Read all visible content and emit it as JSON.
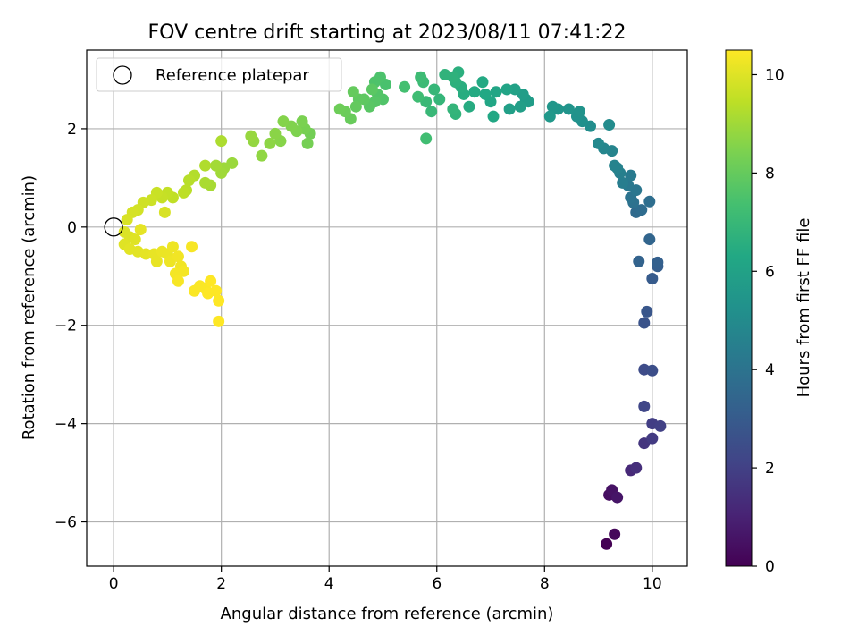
{
  "chart_data": {
    "type": "scatter",
    "title": "FOV centre drift starting at 2023/08/11 07:41:22",
    "xlabel": "Angular distance from reference (arcmin)",
    "ylabel": "Rotation from reference (arcmin)",
    "xlim": [
      -0.5,
      10.65
    ],
    "ylim": [
      -6.9,
      3.6
    ],
    "xticks": [
      0,
      2,
      4,
      6,
      8,
      10
    ],
    "yticks": [
      -6,
      -4,
      -2,
      0,
      2
    ],
    "xtick_labels": [
      "0",
      "2",
      "4",
      "6",
      "8",
      "10"
    ],
    "ytick_labels": [
      "−6",
      "−4",
      "−2",
      "0",
      "2"
    ],
    "grid": true,
    "legend": {
      "position": "top-left",
      "entries": [
        {
          "label": "Reference platepar",
          "marker": "open-circle",
          "x": 0,
          "y": 0
        }
      ]
    },
    "colorbar": {
      "label": "Hours from first FF file",
      "range": [
        0,
        10.5
      ],
      "ticks": [
        0,
        2,
        4,
        6,
        8,
        10
      ],
      "tick_labels": [
        "0",
        "2",
        "4",
        "6",
        "8",
        "10"
      ],
      "colormap": "viridis"
    },
    "points": [
      [
        9.15,
        -6.45,
        0.0
      ],
      [
        9.3,
        -6.25,
        0.2
      ],
      [
        9.2,
        -5.45,
        0.4
      ],
      [
        9.25,
        -5.35,
        0.5
      ],
      [
        9.35,
        -5.5,
        0.6
      ],
      [
        9.6,
        -4.95,
        1.2
      ],
      [
        9.7,
        -4.9,
        1.4
      ],
      [
        9.85,
        -4.4,
        1.6
      ],
      [
        10.0,
        -4.3,
        1.8
      ],
      [
        10.0,
        -4.0,
        1.9
      ],
      [
        10.15,
        -4.05,
        2.0
      ],
      [
        9.85,
        -3.65,
        2.2
      ],
      [
        9.85,
        -2.9,
        2.4
      ],
      [
        10.0,
        -2.92,
        2.5
      ],
      [
        9.85,
        -1.95,
        2.7
      ],
      [
        9.9,
        -1.72,
        2.8
      ],
      [
        10.0,
        -1.05,
        3.0
      ],
      [
        10.1,
        -0.8,
        3.1
      ],
      [
        10.1,
        -0.72,
        3.2
      ],
      [
        9.75,
        -0.7,
        3.3
      ],
      [
        9.95,
        -0.25,
        3.4
      ],
      [
        9.7,
        0.3,
        3.6
      ],
      [
        9.8,
        0.35,
        3.7
      ],
      [
        9.95,
        0.52,
        3.8
      ],
      [
        9.65,
        0.5,
        3.9
      ],
      [
        9.6,
        0.6,
        4.0
      ],
      [
        9.7,
        0.75,
        4.1
      ],
      [
        9.55,
        0.85,
        4.2
      ],
      [
        9.6,
        1.05,
        4.3
      ],
      [
        9.45,
        0.9,
        4.4
      ],
      [
        9.4,
        1.1,
        4.5
      ],
      [
        9.35,
        1.2,
        4.6
      ],
      [
        9.3,
        1.25,
        4.65
      ],
      [
        9.25,
        1.55,
        4.7
      ],
      [
        9.1,
        1.6,
        4.8
      ],
      [
        9.0,
        1.7,
        4.9
      ],
      [
        9.2,
        2.08,
        5.0
      ],
      [
        8.85,
        2.05,
        5.1
      ],
      [
        8.7,
        2.15,
        5.2
      ],
      [
        8.6,
        2.25,
        5.3
      ],
      [
        8.65,
        2.35,
        5.35
      ],
      [
        8.45,
        2.4,
        5.4
      ],
      [
        8.25,
        2.4,
        5.45
      ],
      [
        8.15,
        2.45,
        5.5
      ],
      [
        8.1,
        2.25,
        5.55
      ],
      [
        7.65,
        2.6,
        5.7
      ],
      [
        7.7,
        2.55,
        5.75
      ],
      [
        7.6,
        2.7,
        5.8
      ],
      [
        7.55,
        2.45,
        5.85
      ],
      [
        7.35,
        2.4,
        5.9
      ],
      [
        7.45,
        2.8,
        6.0
      ],
      [
        7.3,
        2.8,
        6.1
      ],
      [
        7.1,
        2.75,
        6.15
      ],
      [
        7.0,
        2.55,
        6.2
      ],
      [
        7.05,
        2.25,
        6.25
      ],
      [
        6.9,
        2.7,
        6.3
      ],
      [
        6.85,
        2.95,
        6.35
      ],
      [
        6.7,
        2.75,
        6.4
      ],
      [
        6.6,
        2.45,
        6.45
      ],
      [
        6.5,
        2.7,
        6.5
      ],
      [
        6.45,
        2.85,
        6.55
      ],
      [
        6.4,
        3.15,
        6.6
      ],
      [
        6.35,
        2.95,
        6.65
      ],
      [
        6.3,
        3.05,
        6.7
      ],
      [
        6.15,
        3.1,
        6.75
      ],
      [
        6.35,
        2.3,
        6.8
      ],
      [
        6.3,
        2.4,
        6.85
      ],
      [
        6.05,
        2.6,
        6.9
      ],
      [
        5.95,
        2.8,
        6.95
      ],
      [
        5.9,
        2.35,
        7.0
      ],
      [
        5.8,
        2.55,
        7.05
      ],
      [
        5.75,
        2.95,
        7.1
      ],
      [
        5.7,
        3.05,
        7.15
      ],
      [
        5.65,
        2.65,
        7.2
      ],
      [
        5.8,
        1.8,
        7.25
      ],
      [
        5.4,
        2.85,
        7.35
      ],
      [
        5.05,
        2.9,
        7.45
      ],
      [
        4.95,
        3.05,
        7.5
      ],
      [
        4.85,
        2.95,
        7.55
      ],
      [
        5.0,
        2.6,
        7.6
      ],
      [
        4.9,
        2.7,
        7.65
      ],
      [
        4.85,
        2.55,
        7.7
      ],
      [
        4.75,
        2.45,
        7.75
      ],
      [
        4.8,
        2.8,
        7.8
      ],
      [
        4.65,
        2.6,
        7.85
      ],
      [
        4.55,
        2.6,
        7.9
      ],
      [
        4.5,
        2.45,
        7.95
      ],
      [
        4.45,
        2.75,
        8.0
      ],
      [
        4.4,
        2.2,
        8.05
      ],
      [
        4.3,
        2.35,
        8.1
      ],
      [
        4.2,
        2.4,
        8.15
      ],
      [
        3.65,
        1.9,
        8.25
      ],
      [
        3.6,
        1.7,
        8.3
      ],
      [
        3.55,
        2.0,
        8.35
      ],
      [
        3.5,
        2.15,
        8.4
      ],
      [
        3.4,
        1.95,
        8.45
      ],
      [
        3.3,
        2.05,
        8.5
      ],
      [
        3.15,
        2.15,
        8.55
      ],
      [
        3.1,
        1.75,
        8.6
      ],
      [
        3.0,
        1.9,
        8.65
      ],
      [
        2.9,
        1.7,
        8.7
      ],
      [
        2.75,
        1.45,
        8.75
      ],
      [
        2.6,
        1.75,
        8.8
      ],
      [
        2.55,
        1.85,
        8.85
      ],
      [
        2.2,
        1.3,
        8.9
      ],
      [
        2.05,
        1.2,
        8.95
      ],
      [
        2.0,
        1.1,
        9.0
      ],
      [
        1.9,
        1.25,
        9.05
      ],
      [
        1.8,
        0.85,
        9.1
      ],
      [
        1.7,
        0.9,
        9.15
      ],
      [
        2.0,
        1.75,
        9.2
      ],
      [
        1.7,
        1.25,
        9.25
      ],
      [
        1.5,
        1.05,
        9.3
      ],
      [
        1.4,
        0.95,
        9.35
      ],
      [
        1.35,
        0.75,
        9.4
      ],
      [
        1.3,
        0.7,
        9.45
      ],
      [
        1.1,
        0.6,
        9.5
      ],
      [
        1.0,
        0.7,
        9.55
      ],
      [
        0.9,
        0.6,
        9.6
      ],
      [
        0.8,
        0.7,
        9.65
      ],
      [
        0.7,
        0.55,
        9.7
      ],
      [
        0.55,
        0.5,
        9.75
      ],
      [
        0.45,
        0.35,
        9.8
      ],
      [
        0.35,
        0.3,
        9.85
      ],
      [
        0.95,
        0.3,
        9.9
      ],
      [
        0.25,
        0.15,
        9.9
      ],
      [
        0.2,
        -0.1,
        9.95
      ],
      [
        0.3,
        -0.2,
        9.95
      ],
      [
        0.4,
        -0.25,
        10.0
      ],
      [
        0.2,
        -0.35,
        10.0
      ],
      [
        0.3,
        -0.45,
        10.05
      ],
      [
        0.45,
        -0.5,
        10.05
      ],
      [
        0.5,
        -0.05,
        10.1
      ],
      [
        0.6,
        -0.55,
        10.1
      ],
      [
        0.75,
        -0.55,
        10.15
      ],
      [
        0.8,
        -0.7,
        10.15
      ],
      [
        0.9,
        -0.5,
        10.2
      ],
      [
        1.0,
        -0.55,
        10.2
      ],
      [
        1.05,
        -0.7,
        10.25
      ],
      [
        1.1,
        -0.4,
        10.25
      ],
      [
        1.2,
        -0.6,
        10.3
      ],
      [
        1.25,
        -0.8,
        10.3
      ],
      [
        1.3,
        -0.9,
        10.35
      ],
      [
        1.15,
        -0.95,
        10.35
      ],
      [
        1.2,
        -1.1,
        10.4
      ],
      [
        1.45,
        -0.4,
        10.4
      ],
      [
        1.5,
        -1.3,
        10.45
      ],
      [
        1.7,
        -1.25,
        10.45
      ],
      [
        1.8,
        -1.1,
        10.5
      ],
      [
        1.75,
        -1.35,
        10.5
      ],
      [
        1.9,
        -1.3,
        10.5
      ],
      [
        1.95,
        -1.5,
        10.5
      ],
      [
        1.95,
        -1.92,
        10.5
      ],
      [
        1.6,
        -1.2,
        10.45
      ]
    ]
  }
}
